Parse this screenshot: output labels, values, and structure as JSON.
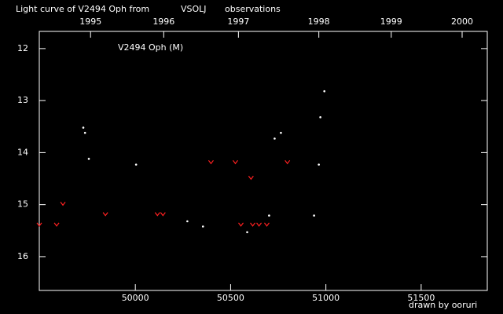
{
  "chart_data": {
    "type": "scatter",
    "title_parts": [
      "Light curve of V2494 Oph from",
      "VSOLJ",
      "observations"
    ],
    "title_colors": [
      "#ffffff",
      "#ffd700",
      "#ffffff"
    ],
    "annotation": "V2494 Oph (M)",
    "footer": "drawn by ooruri",
    "footer_color": "#33ccff",
    "xlim": [
      49496,
      51847
    ],
    "xticks": [
      50000,
      50500,
      51000,
      51500
    ],
    "x2ticks": [
      {
        "value": 49765,
        "label": "1995"
      },
      {
        "value": 50149,
        "label": "1996"
      },
      {
        "value": 50541,
        "label": "1997"
      },
      {
        "value": 50963,
        "label": "1998"
      },
      {
        "value": 51343,
        "label": "1999"
      },
      {
        "value": 51715,
        "label": "2000"
      }
    ],
    "ylim": [
      16.65,
      11.67
    ],
    "yticks": [
      12,
      13,
      14,
      15,
      16
    ],
    "series": [
      {
        "color": "#ffffff",
        "marker": "dot",
        "x": [
          49727,
          49736,
          49756,
          50004,
          50273,
          50355,
          50587,
          50702,
          50731,
          50764,
          50938,
          50963,
          50971,
          50992
        ],
        "values": [
          13.52,
          13.62,
          14.12,
          14.23,
          15.32,
          15.42,
          15.53,
          15.21,
          13.73,
          13.62,
          15.21,
          14.23,
          13.32,
          12.82
        ]
      },
      {
        "color": "#ff2020",
        "marker": "v",
        "x": [
          49496,
          49587,
          49620,
          49843,
          50116,
          50145,
          50397,
          50525,
          50554,
          50607,
          50616,
          50649,
          50690,
          50798
        ],
        "values": [
          15.38,
          15.38,
          14.98,
          15.18,
          15.18,
          15.18,
          14.18,
          14.18,
          15.38,
          14.48,
          15.38,
          15.38,
          15.38,
          14.18
        ]
      }
    ]
  }
}
